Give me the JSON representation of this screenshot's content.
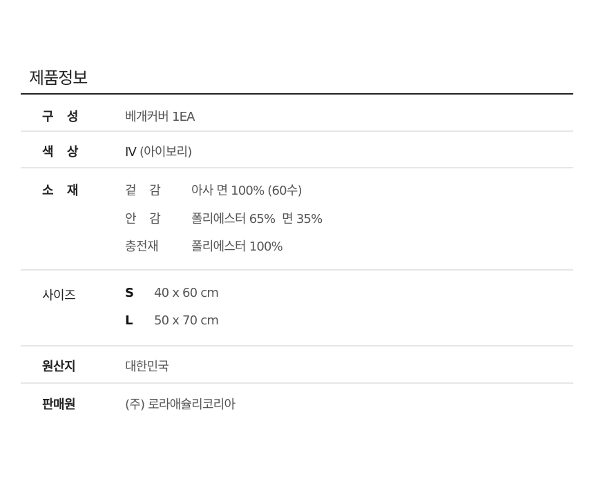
{
  "title": "제품정보",
  "rows": {
    "composition": {
      "label": "구 성",
      "value": "베개커버 1EA"
    },
    "color": {
      "label": "색 상",
      "code": "IV",
      "value": "(아이보리)"
    },
    "material": {
      "label": "소 재",
      "items": [
        {
          "label": "겉 감",
          "value": "아사 면 100% (60수)"
        },
        {
          "label": "안 감",
          "value": "폴리에스터 65%  면 35%"
        },
        {
          "label": "충전재",
          "value": "폴리에스터 100%"
        }
      ]
    },
    "size": {
      "label": "사이즈",
      "items": [
        {
          "label": "S",
          "value": "40 x 60 cm"
        },
        {
          "label": "L",
          "value": "50 x 70 cm"
        }
      ]
    },
    "origin": {
      "label": "원산지",
      "value": "대한민국"
    },
    "seller": {
      "label": "판매원",
      "value": "(주) 로라애슐리코리아"
    }
  }
}
